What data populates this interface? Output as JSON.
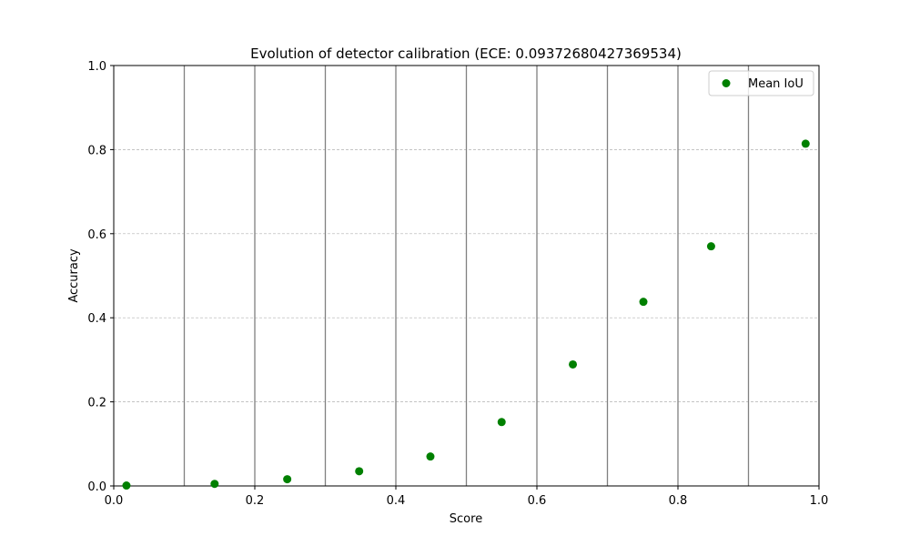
{
  "chart_data": {
    "type": "scatter",
    "title": "Evolution of detector calibration (ECE: 0.09372680427369534)",
    "xlabel": "Score",
    "ylabel": "Accuracy",
    "xlim": [
      0.0,
      1.0
    ],
    "ylim": [
      0.0,
      1.0
    ],
    "x_ticks": [
      0.0,
      0.2,
      0.4,
      0.6,
      0.8,
      1.0
    ],
    "y_ticks": [
      0.0,
      0.2,
      0.4,
      0.6,
      0.8,
      1.0
    ],
    "x_tick_labels": [
      "0.0",
      "0.2",
      "0.4",
      "0.6",
      "0.8",
      "1.0"
    ],
    "y_tick_labels": [
      "0.0",
      "0.2",
      "0.4",
      "0.6",
      "0.8",
      "1.0"
    ],
    "bin_edges": [
      0.1,
      0.2,
      0.3,
      0.4,
      0.5,
      0.6,
      0.7,
      0.8,
      0.9
    ],
    "grid": "horizontal dashed",
    "legend_position": "top-right",
    "series": [
      {
        "name": "Mean IoU",
        "color": "#008000",
        "x": [
          0.018,
          0.143,
          0.246,
          0.348,
          0.449,
          0.55,
          0.651,
          0.751,
          0.847,
          0.981
        ],
        "y": [
          0.001,
          0.005,
          0.016,
          0.035,
          0.07,
          0.152,
          0.289,
          0.438,
          0.57,
          0.814
        ]
      }
    ]
  },
  "colors": {
    "marker": "#008000",
    "bin_line": "#808080",
    "grid": "#b0b0b0",
    "axis": "#000000"
  }
}
